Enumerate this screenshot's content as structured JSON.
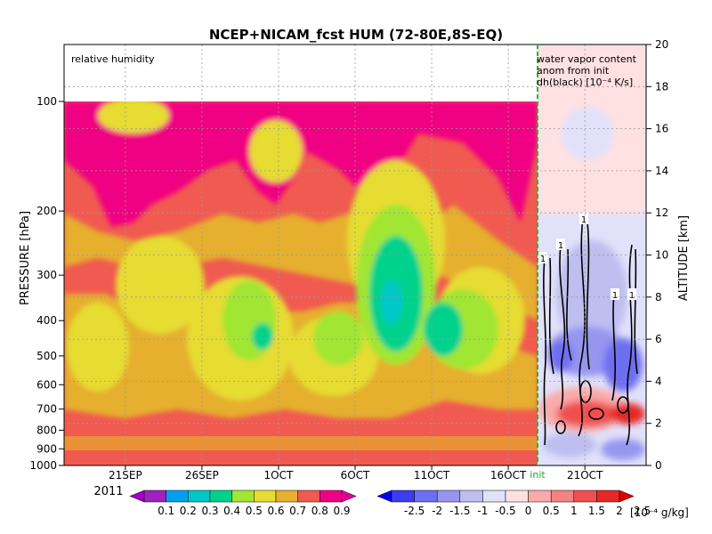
{
  "chart_data": {
    "type": "heatmap",
    "title": "NCEP+NICAM_fcst HUM (72-80E,8S-EQ)",
    "left_panel_label": "relative humidity",
    "right_panel_label_lines": [
      "water vapor content",
      "anom from init",
      "dh(black) [10⁻⁴ K/s]"
    ],
    "ylabel_left": "PRESSURE [hPa]",
    "ylabel_right": "ALTITUDE [km]",
    "pressure_ticks": [
      "100",
      "200",
      "300",
      "400",
      "500",
      "600",
      "700",
      "800",
      "900",
      "1000"
    ],
    "pressure_range": [
      1000,
      100
    ],
    "altitude_ticks": [
      "0",
      "2",
      "4",
      "6",
      "8",
      "10",
      "12",
      "14",
      "16",
      "18",
      "20"
    ],
    "altitude_range_km": [
      0,
      20
    ],
    "x_ticks": [
      "21SEP",
      "26SEP",
      "1OCT",
      "6OCT",
      "11OCT",
      "16OCT",
      "21OCT"
    ],
    "x_year": "2011",
    "init_label": "init",
    "contour_label": "1",
    "colorbar_rh": {
      "labels": [
        "0.1",
        "0.2",
        "0.3",
        "0.4",
        "0.5",
        "0.6",
        "0.7",
        "0.8",
        "0.9"
      ],
      "colors": [
        "#a020c0",
        "#00a0f0",
        "#00c8c8",
        "#00d28c",
        "#a0e632",
        "#e6dc32",
        "#e6af2d",
        "#f05a50",
        "#f00082"
      ],
      "extend_low_color": "#a000c8",
      "extend_high_color": "#e6009a"
    },
    "colorbar_anom": {
      "labels": [
        "-2.5",
        "-2",
        "-1.5",
        "-1",
        "-0.5",
        "0",
        "0.5",
        "1",
        "1.5",
        "2",
        "2.5"
      ],
      "unit": "[10⁻⁴ g/kg]",
      "colors": [
        "#3c3cf0",
        "#6e6ef0",
        "#9696f0",
        "#bebef0",
        "#e1e1fa",
        "#ffe1e1",
        "#faaaaa",
        "#f58282",
        "#f05050",
        "#e62828"
      ],
      "extend_low_color": "#0000f0",
      "extend_high_color": "#e10000"
    }
  }
}
